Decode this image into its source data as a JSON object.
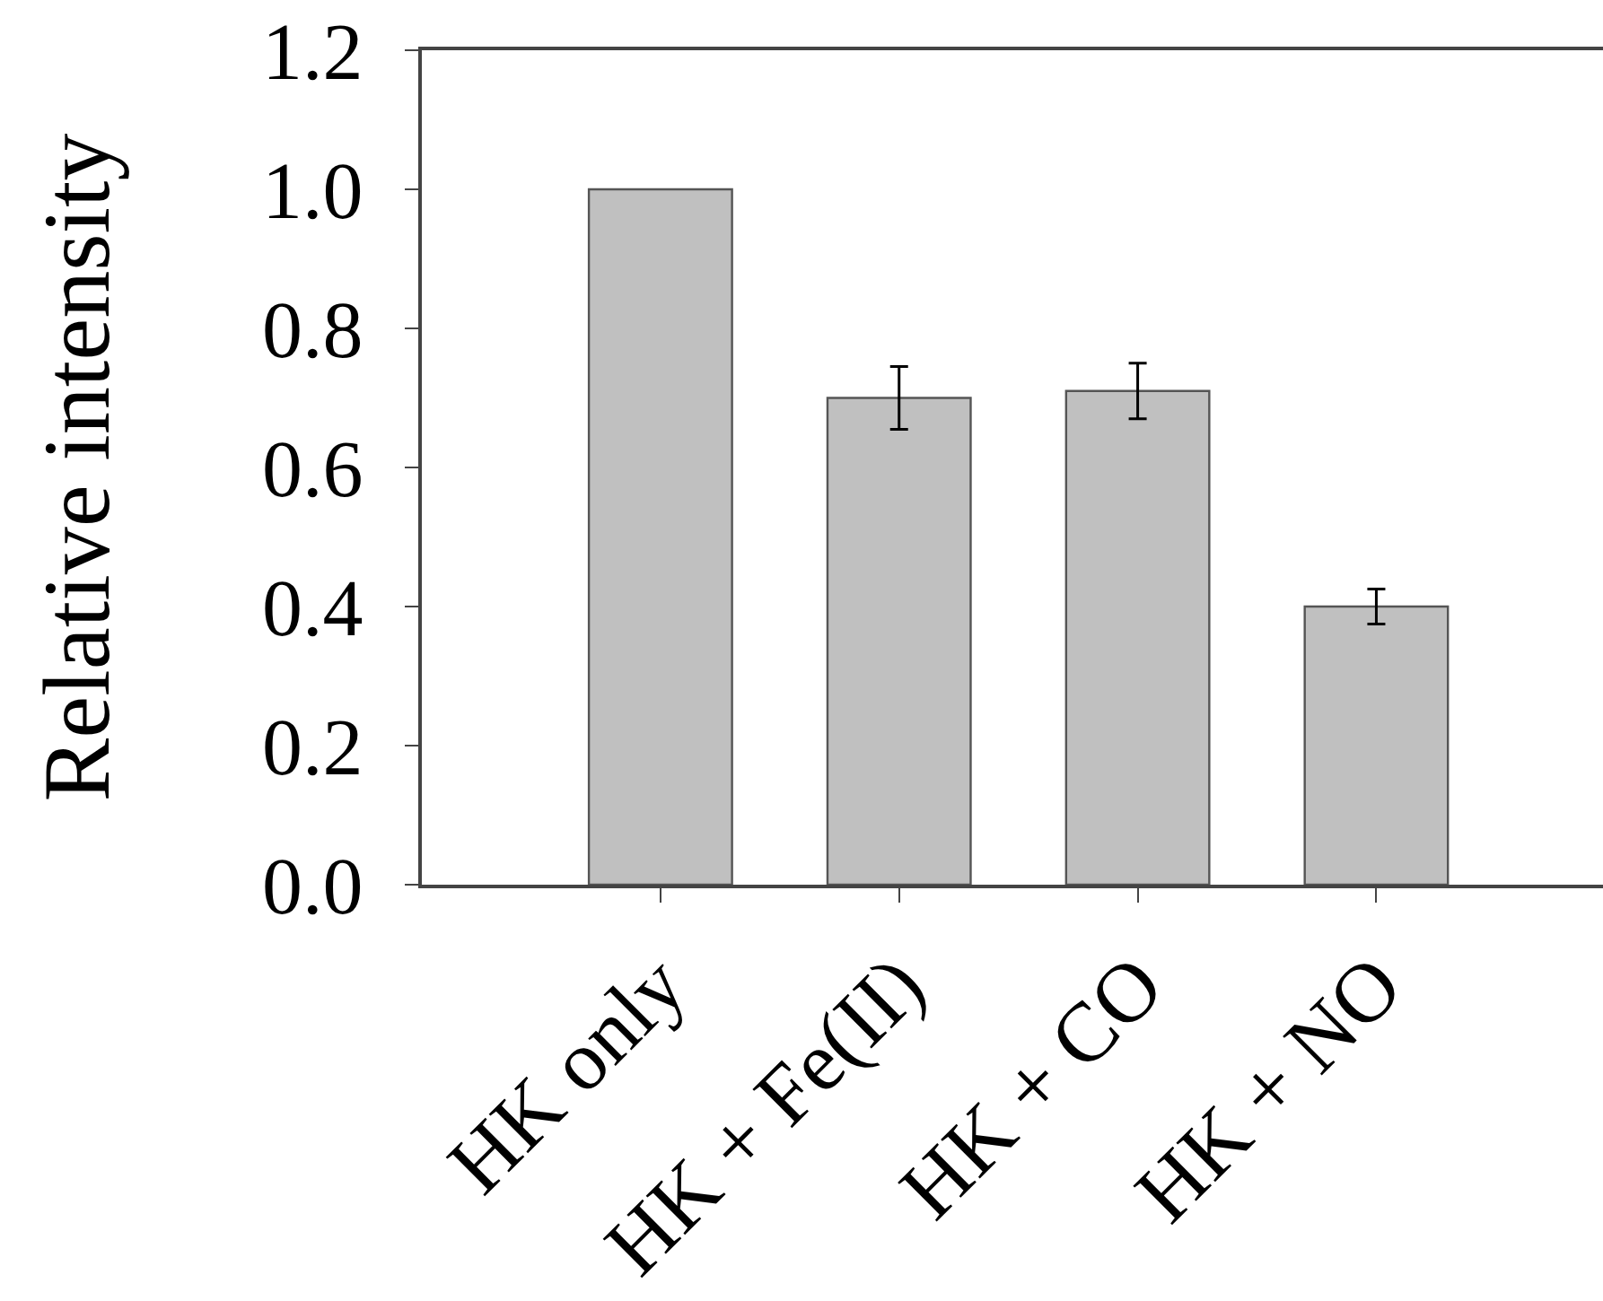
{
  "chart_data": {
    "type": "bar",
    "ylabel": "Relative intensity",
    "categories": [
      "HK only",
      "HK + Fe(II)",
      "HK + CO",
      "HK + NO"
    ],
    "values": [
      1.0,
      0.7,
      0.71,
      0.4
    ],
    "errors": [
      null,
      0.045,
      0.04,
      0.025
    ],
    "color": "#c0c0c0",
    "ylim": [
      0,
      1.2
    ],
    "yticks": [
      {
        "value": 0,
        "label": "0.0"
      },
      0.2,
      0.4,
      0.6,
      0.8,
      {
        "value": 1.0,
        "label": "1.0"
      },
      1.2
    ]
  }
}
